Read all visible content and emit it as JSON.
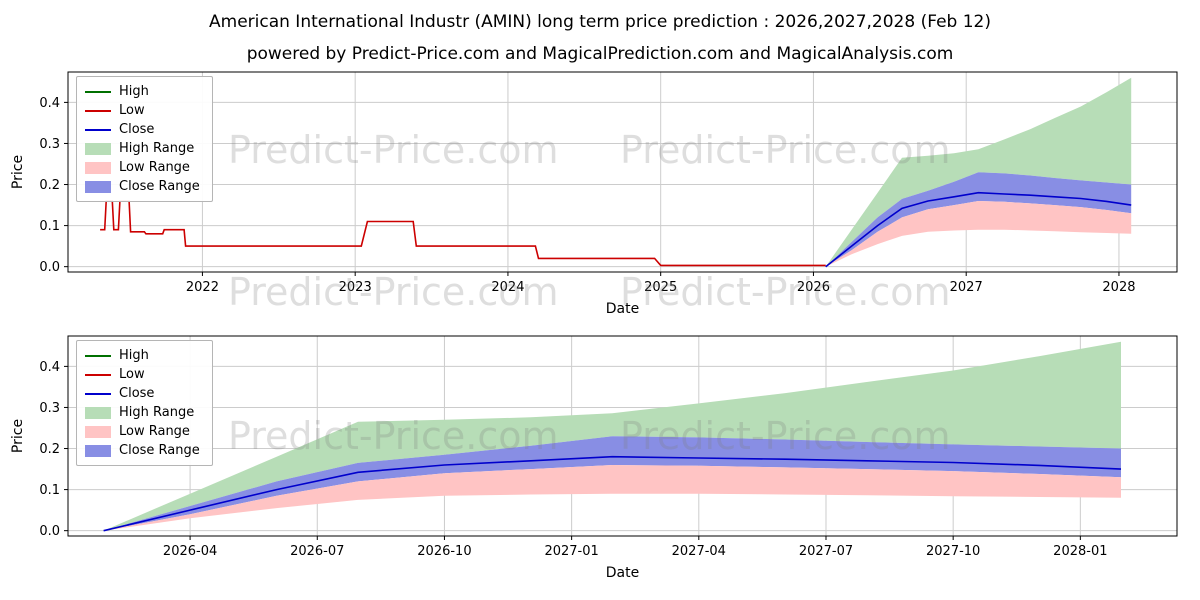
{
  "title": "American International Industr (AMIN) long term price prediction : 2026,2027,2028 (Feb 12)",
  "subtitle": "powered by Predict-Price.com and MagicalPrediction.com and MagicalAnalysis.com",
  "watermark": {
    "text": "Predict-Price.com"
  },
  "colors": {
    "high": "#007000",
    "low": "#cc0000",
    "close": "#0000cc",
    "high_range": "#b7ddb7",
    "low_range": "#ffc4c4",
    "close_range": "#888ee4",
    "grid": "#cccccc",
    "spine": "#000000"
  },
  "legend": {
    "items": [
      {
        "label": "High",
        "swatch": "line",
        "color_key": "high"
      },
      {
        "label": "Low",
        "swatch": "line",
        "color_key": "low"
      },
      {
        "label": "Close",
        "swatch": "line",
        "color_key": "close"
      },
      {
        "label": "High Range",
        "swatch": "patch",
        "color_key": "high_range"
      },
      {
        "label": "Low Range",
        "swatch": "patch",
        "color_key": "low_range"
      },
      {
        "label": "Close Range",
        "swatch": "patch",
        "color_key": "close_range"
      }
    ]
  },
  "chart_data": [
    {
      "name": "full-history-with-prediction",
      "type": "line",
      "xlabel": "Date",
      "ylabel": "Price",
      "xlim": [
        2021.12,
        2028.38
      ],
      "ylim": [
        -0.013,
        0.474
      ],
      "grid": true,
      "legend_position": "upper-left",
      "xticks": {
        "values": [
          2022,
          2023,
          2024,
          2025,
          2026,
          2027,
          2028
        ],
        "labels": [
          "2022",
          "2023",
          "2024",
          "2025",
          "2026",
          "2027",
          "2028"
        ]
      },
      "yticks": {
        "values": [
          0.0,
          0.1,
          0.2,
          0.3,
          0.4
        ],
        "labels": [
          "0.0",
          "0.1",
          "0.2",
          "0.3",
          "0.4"
        ]
      },
      "bands": [
        {
          "name": "high-range-band",
          "color_key": "high_range",
          "x": [
            2026.08,
            2026.25,
            2026.42,
            2026.58,
            2026.75,
            2026.92,
            2027.08,
            2027.25,
            2027.42,
            2027.58,
            2027.75,
            2027.92,
            2028.08
          ],
          "top": [
            0.0,
            0.09,
            0.18,
            0.265,
            0.27,
            0.276,
            0.286,
            0.31,
            0.335,
            0.362,
            0.39,
            0.425,
            0.46
          ],
          "bottom": [
            0.0,
            0.06,
            0.12,
            0.165,
            0.185,
            0.207,
            0.23,
            0.227,
            0.222,
            0.216,
            0.21,
            0.205,
            0.2
          ]
        },
        {
          "name": "close-range-band",
          "color_key": "close_range",
          "x": [
            2026.08,
            2026.25,
            2026.42,
            2026.58,
            2026.75,
            2026.92,
            2027.08,
            2027.25,
            2027.42,
            2027.58,
            2027.75,
            2027.92,
            2028.08
          ],
          "top": [
            0.0,
            0.06,
            0.12,
            0.165,
            0.185,
            0.207,
            0.23,
            0.227,
            0.222,
            0.216,
            0.21,
            0.205,
            0.2
          ],
          "bottom": [
            0.0,
            0.04,
            0.085,
            0.12,
            0.14,
            0.15,
            0.16,
            0.158,
            0.154,
            0.15,
            0.145,
            0.138,
            0.13
          ]
        },
        {
          "name": "low-range-band",
          "color_key": "low_range",
          "x": [
            2026.08,
            2026.25,
            2026.42,
            2026.58,
            2026.75,
            2026.92,
            2027.08,
            2027.25,
            2027.42,
            2027.58,
            2027.75,
            2027.92,
            2028.08
          ],
          "top": [
            0.0,
            0.04,
            0.085,
            0.12,
            0.14,
            0.15,
            0.16,
            0.158,
            0.154,
            0.15,
            0.145,
            0.138,
            0.13
          ],
          "bottom": [
            0.0,
            0.03,
            0.055,
            0.075,
            0.085,
            0.088,
            0.09,
            0.09,
            0.088,
            0.086,
            0.084,
            0.082,
            0.08
          ]
        }
      ],
      "lines": [
        {
          "name": "low-history-line",
          "color_key": "low",
          "x": [
            2021.33,
            2021.36,
            2021.37,
            2021.41,
            2021.42,
            2021.45,
            2021.46,
            2021.52,
            2021.53,
            2021.62,
            2021.63,
            2021.74,
            2021.75,
            2021.88,
            2021.89,
            2023.04,
            2023.08,
            2023.38,
            2023.4,
            2024.18,
            2024.2,
            2024.96,
            2025.0,
            2026.08
          ],
          "y": [
            0.09,
            0.09,
            0.16,
            0.16,
            0.09,
            0.09,
            0.16,
            0.16,
            0.085,
            0.085,
            0.08,
            0.08,
            0.09,
            0.09,
            0.05,
            0.05,
            0.11,
            0.11,
            0.05,
            0.05,
            0.02,
            0.02,
            0.003,
            0.003
          ]
        },
        {
          "name": "close-prediction-line",
          "color_key": "close",
          "x": [
            2026.08,
            2026.25,
            2026.42,
            2026.58,
            2026.75,
            2026.92,
            2027.08,
            2027.25,
            2027.42,
            2027.58,
            2027.75,
            2027.92,
            2028.08
          ],
          "y": [
            0.0,
            0.05,
            0.1,
            0.142,
            0.16,
            0.17,
            0.18,
            0.177,
            0.174,
            0.17,
            0.166,
            0.159,
            0.15
          ]
        }
      ]
    },
    {
      "name": "prediction-zoom",
      "type": "line",
      "xlabel": "Date",
      "ylabel": "Price",
      "xlim": [
        2026.01,
        2028.19
      ],
      "ylim": [
        -0.013,
        0.474
      ],
      "grid": true,
      "legend_position": "upper-left",
      "xticks": {
        "values": [
          2026.25,
          2026.5,
          2026.75,
          2027.0,
          2027.25,
          2027.5,
          2027.75,
          2028.0
        ],
        "labels": [
          "2026-04",
          "2026-07",
          "2026-10",
          "2027-01",
          "2027-04",
          "2027-07",
          "2027-10",
          "2028-01"
        ]
      },
      "yticks": {
        "values": [
          0.0,
          0.1,
          0.2,
          0.3,
          0.4
        ],
        "labels": [
          "0.0",
          "0.1",
          "0.2",
          "0.3",
          "0.4"
        ]
      },
      "bands": [
        {
          "name": "high-range-band",
          "color_key": "high_range",
          "x": [
            2026.08,
            2026.25,
            2026.42,
            2026.58,
            2026.75,
            2026.92,
            2027.08,
            2027.25,
            2027.42,
            2027.58,
            2027.75,
            2027.92,
            2028.08
          ],
          "top": [
            0.0,
            0.09,
            0.18,
            0.265,
            0.27,
            0.276,
            0.286,
            0.31,
            0.335,
            0.362,
            0.39,
            0.425,
            0.46
          ],
          "bottom": [
            0.0,
            0.06,
            0.12,
            0.165,
            0.185,
            0.207,
            0.23,
            0.227,
            0.222,
            0.216,
            0.21,
            0.205,
            0.2
          ]
        },
        {
          "name": "close-range-band",
          "color_key": "close_range",
          "x": [
            2026.08,
            2026.25,
            2026.42,
            2026.58,
            2026.75,
            2026.92,
            2027.08,
            2027.25,
            2027.42,
            2027.58,
            2027.75,
            2027.92,
            2028.08
          ],
          "top": [
            0.0,
            0.06,
            0.12,
            0.165,
            0.185,
            0.207,
            0.23,
            0.227,
            0.222,
            0.216,
            0.21,
            0.205,
            0.2
          ],
          "bottom": [
            0.0,
            0.04,
            0.085,
            0.12,
            0.14,
            0.15,
            0.16,
            0.158,
            0.154,
            0.15,
            0.145,
            0.138,
            0.13
          ]
        },
        {
          "name": "low-range-band",
          "color_key": "low_range",
          "x": [
            2026.08,
            2026.25,
            2026.42,
            2026.58,
            2026.75,
            2026.92,
            2027.08,
            2027.25,
            2027.42,
            2027.58,
            2027.75,
            2027.92,
            2028.08
          ],
          "top": [
            0.0,
            0.04,
            0.085,
            0.12,
            0.14,
            0.15,
            0.16,
            0.158,
            0.154,
            0.15,
            0.145,
            0.138,
            0.13
          ],
          "bottom": [
            0.0,
            0.03,
            0.055,
            0.075,
            0.085,
            0.088,
            0.09,
            0.09,
            0.088,
            0.086,
            0.084,
            0.082,
            0.08
          ]
        }
      ],
      "lines": [
        {
          "name": "close-prediction-line",
          "color_key": "close",
          "x": [
            2026.08,
            2026.25,
            2026.42,
            2026.58,
            2026.75,
            2026.92,
            2027.08,
            2027.25,
            2027.42,
            2027.58,
            2027.75,
            2027.92,
            2028.08
          ],
          "y": [
            0.0,
            0.05,
            0.1,
            0.142,
            0.16,
            0.17,
            0.18,
            0.177,
            0.174,
            0.17,
            0.166,
            0.159,
            0.15
          ]
        }
      ]
    }
  ]
}
